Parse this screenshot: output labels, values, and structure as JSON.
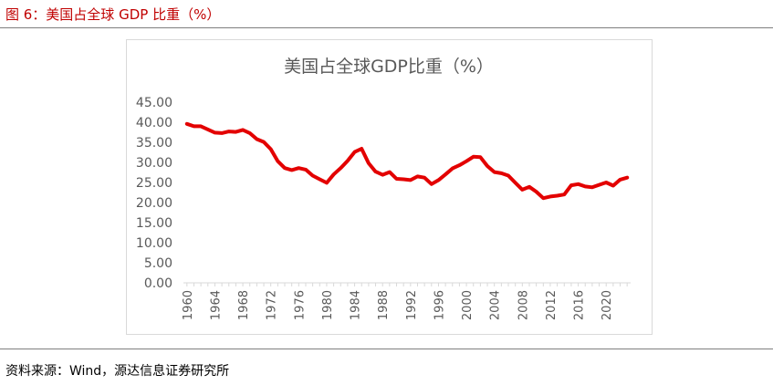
{
  "figure": {
    "caption": "图 6：美国占全球 GDP 比重（%）",
    "source": "资料来源：Wind，源达信息证券研究所"
  },
  "colors": {
    "caption": "#c00000",
    "series": "#e30000",
    "axis_text": "#595959",
    "title_text": "#595959",
    "axis_line": "#d9d9d9"
  },
  "chart_data": {
    "type": "line",
    "title": "美国占全球GDP比重（%）",
    "xlabel": "",
    "ylabel": "",
    "ylim": [
      0,
      45
    ],
    "yticks": [
      "0.00",
      "5.00",
      "10.00",
      "15.00",
      "20.00",
      "25.00",
      "30.00",
      "35.00",
      "40.00",
      "45.00"
    ],
    "xticks": [
      "1960",
      "1964",
      "1968",
      "1972",
      "1976",
      "1980",
      "1984",
      "1988",
      "1992",
      "1996",
      "2000",
      "2004",
      "2008",
      "2012",
      "2016",
      "2020"
    ],
    "grid": false,
    "legend": "none",
    "x": [
      1960,
      1961,
      1962,
      1963,
      1964,
      1965,
      1966,
      1967,
      1968,
      1969,
      1970,
      1971,
      1972,
      1973,
      1974,
      1975,
      1976,
      1977,
      1978,
      1979,
      1980,
      1981,
      1982,
      1983,
      1984,
      1985,
      1986,
      1987,
      1988,
      1989,
      1990,
      1991,
      1992,
      1993,
      1994,
      1995,
      1996,
      1997,
      1998,
      1999,
      2000,
      2001,
      2002,
      2003,
      2004,
      2005,
      2006,
      2007,
      2008,
      2009,
      2010,
      2011,
      2012,
      2013,
      2014,
      2015,
      2016,
      2017,
      2018,
      2019,
      2020,
      2021,
      2022,
      2023
    ],
    "series": [
      {
        "values": [
          39.6,
          39.0,
          39.0,
          38.2,
          37.4,
          37.3,
          37.7,
          37.6,
          38.1,
          37.3,
          35.8,
          35.1,
          33.3,
          30.3,
          28.6,
          28.1,
          28.6,
          28.2,
          26.7,
          25.8,
          24.9,
          27.0,
          28.6,
          30.4,
          32.6,
          33.4,
          29.8,
          27.7,
          26.9,
          27.6,
          25.9,
          25.8,
          25.6,
          26.5,
          26.2,
          24.6,
          25.6,
          27.0,
          28.5,
          29.3,
          30.3,
          31.4,
          31.3,
          29.1,
          27.6,
          27.3,
          26.7,
          24.9,
          23.2,
          23.9,
          22.7,
          21.1,
          21.5,
          21.7,
          22.0,
          24.3,
          24.6,
          24.0,
          23.8,
          24.4,
          25.0,
          24.2,
          25.7,
          26.2
        ]
      }
    ]
  }
}
